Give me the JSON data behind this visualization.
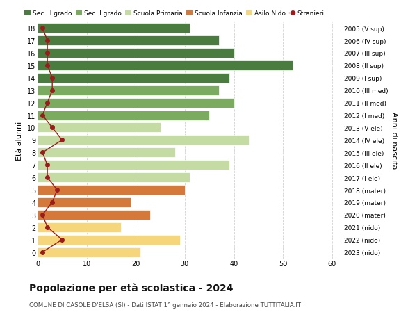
{
  "ages": [
    18,
    17,
    16,
    15,
    14,
    13,
    12,
    11,
    10,
    9,
    8,
    7,
    6,
    5,
    4,
    3,
    2,
    1,
    0
  ],
  "bar_values": [
    31,
    37,
    40,
    52,
    39,
    37,
    40,
    35,
    25,
    43,
    28,
    39,
    31,
    30,
    19,
    23,
    17,
    29,
    21
  ],
  "stranieri_values": [
    1,
    2,
    2,
    2,
    3,
    3,
    2,
    1,
    3,
    5,
    1,
    2,
    2,
    4,
    3,
    1,
    2,
    5,
    1
  ],
  "right_labels": [
    "2005 (V sup)",
    "2006 (IV sup)",
    "2007 (III sup)",
    "2008 (II sup)",
    "2009 (I sup)",
    "2010 (III med)",
    "2011 (II med)",
    "2012 (I med)",
    "2013 (V ele)",
    "2014 (IV ele)",
    "2015 (III ele)",
    "2016 (II ele)",
    "2017 (I ele)",
    "2018 (mater)",
    "2019 (mater)",
    "2020 (mater)",
    "2021 (nido)",
    "2022 (nido)",
    "2023 (nido)"
  ],
  "bar_colors": [
    "#4a7c3f",
    "#4a7c3f",
    "#4a7c3f",
    "#4a7c3f",
    "#4a7c3f",
    "#7aab5e",
    "#7aab5e",
    "#7aab5e",
    "#c5dba4",
    "#c5dba4",
    "#c5dba4",
    "#c5dba4",
    "#c5dba4",
    "#d4793a",
    "#d4793a",
    "#d4793a",
    "#f5d67a",
    "#f5d67a",
    "#f5d67a"
  ],
  "legend_labels": [
    "Sec. II grado",
    "Sec. I grado",
    "Scuola Primaria",
    "Scuola Infanzia",
    "Asilo Nido",
    "Stranieri"
  ],
  "legend_colors": [
    "#4a7c3f",
    "#7aab5e",
    "#c5dba4",
    "#d4793a",
    "#f5d67a",
    "#9b1c1c"
  ],
  "stranieri_color": "#9b1c1c",
  "title": "Popolazione per età scolastica - 2024",
  "subtitle": "COMUNE DI CASOLE D'ELSA (SI) - Dati ISTAT 1° gennaio 2024 - Elaborazione TUTTITALIA.IT",
  "ylabel_left": "Età alunni",
  "ylabel_right": "Anni di nascita",
  "xlim": [
    0,
    62
  ],
  "background_color": "#ffffff",
  "grid_color": "#cccccc"
}
